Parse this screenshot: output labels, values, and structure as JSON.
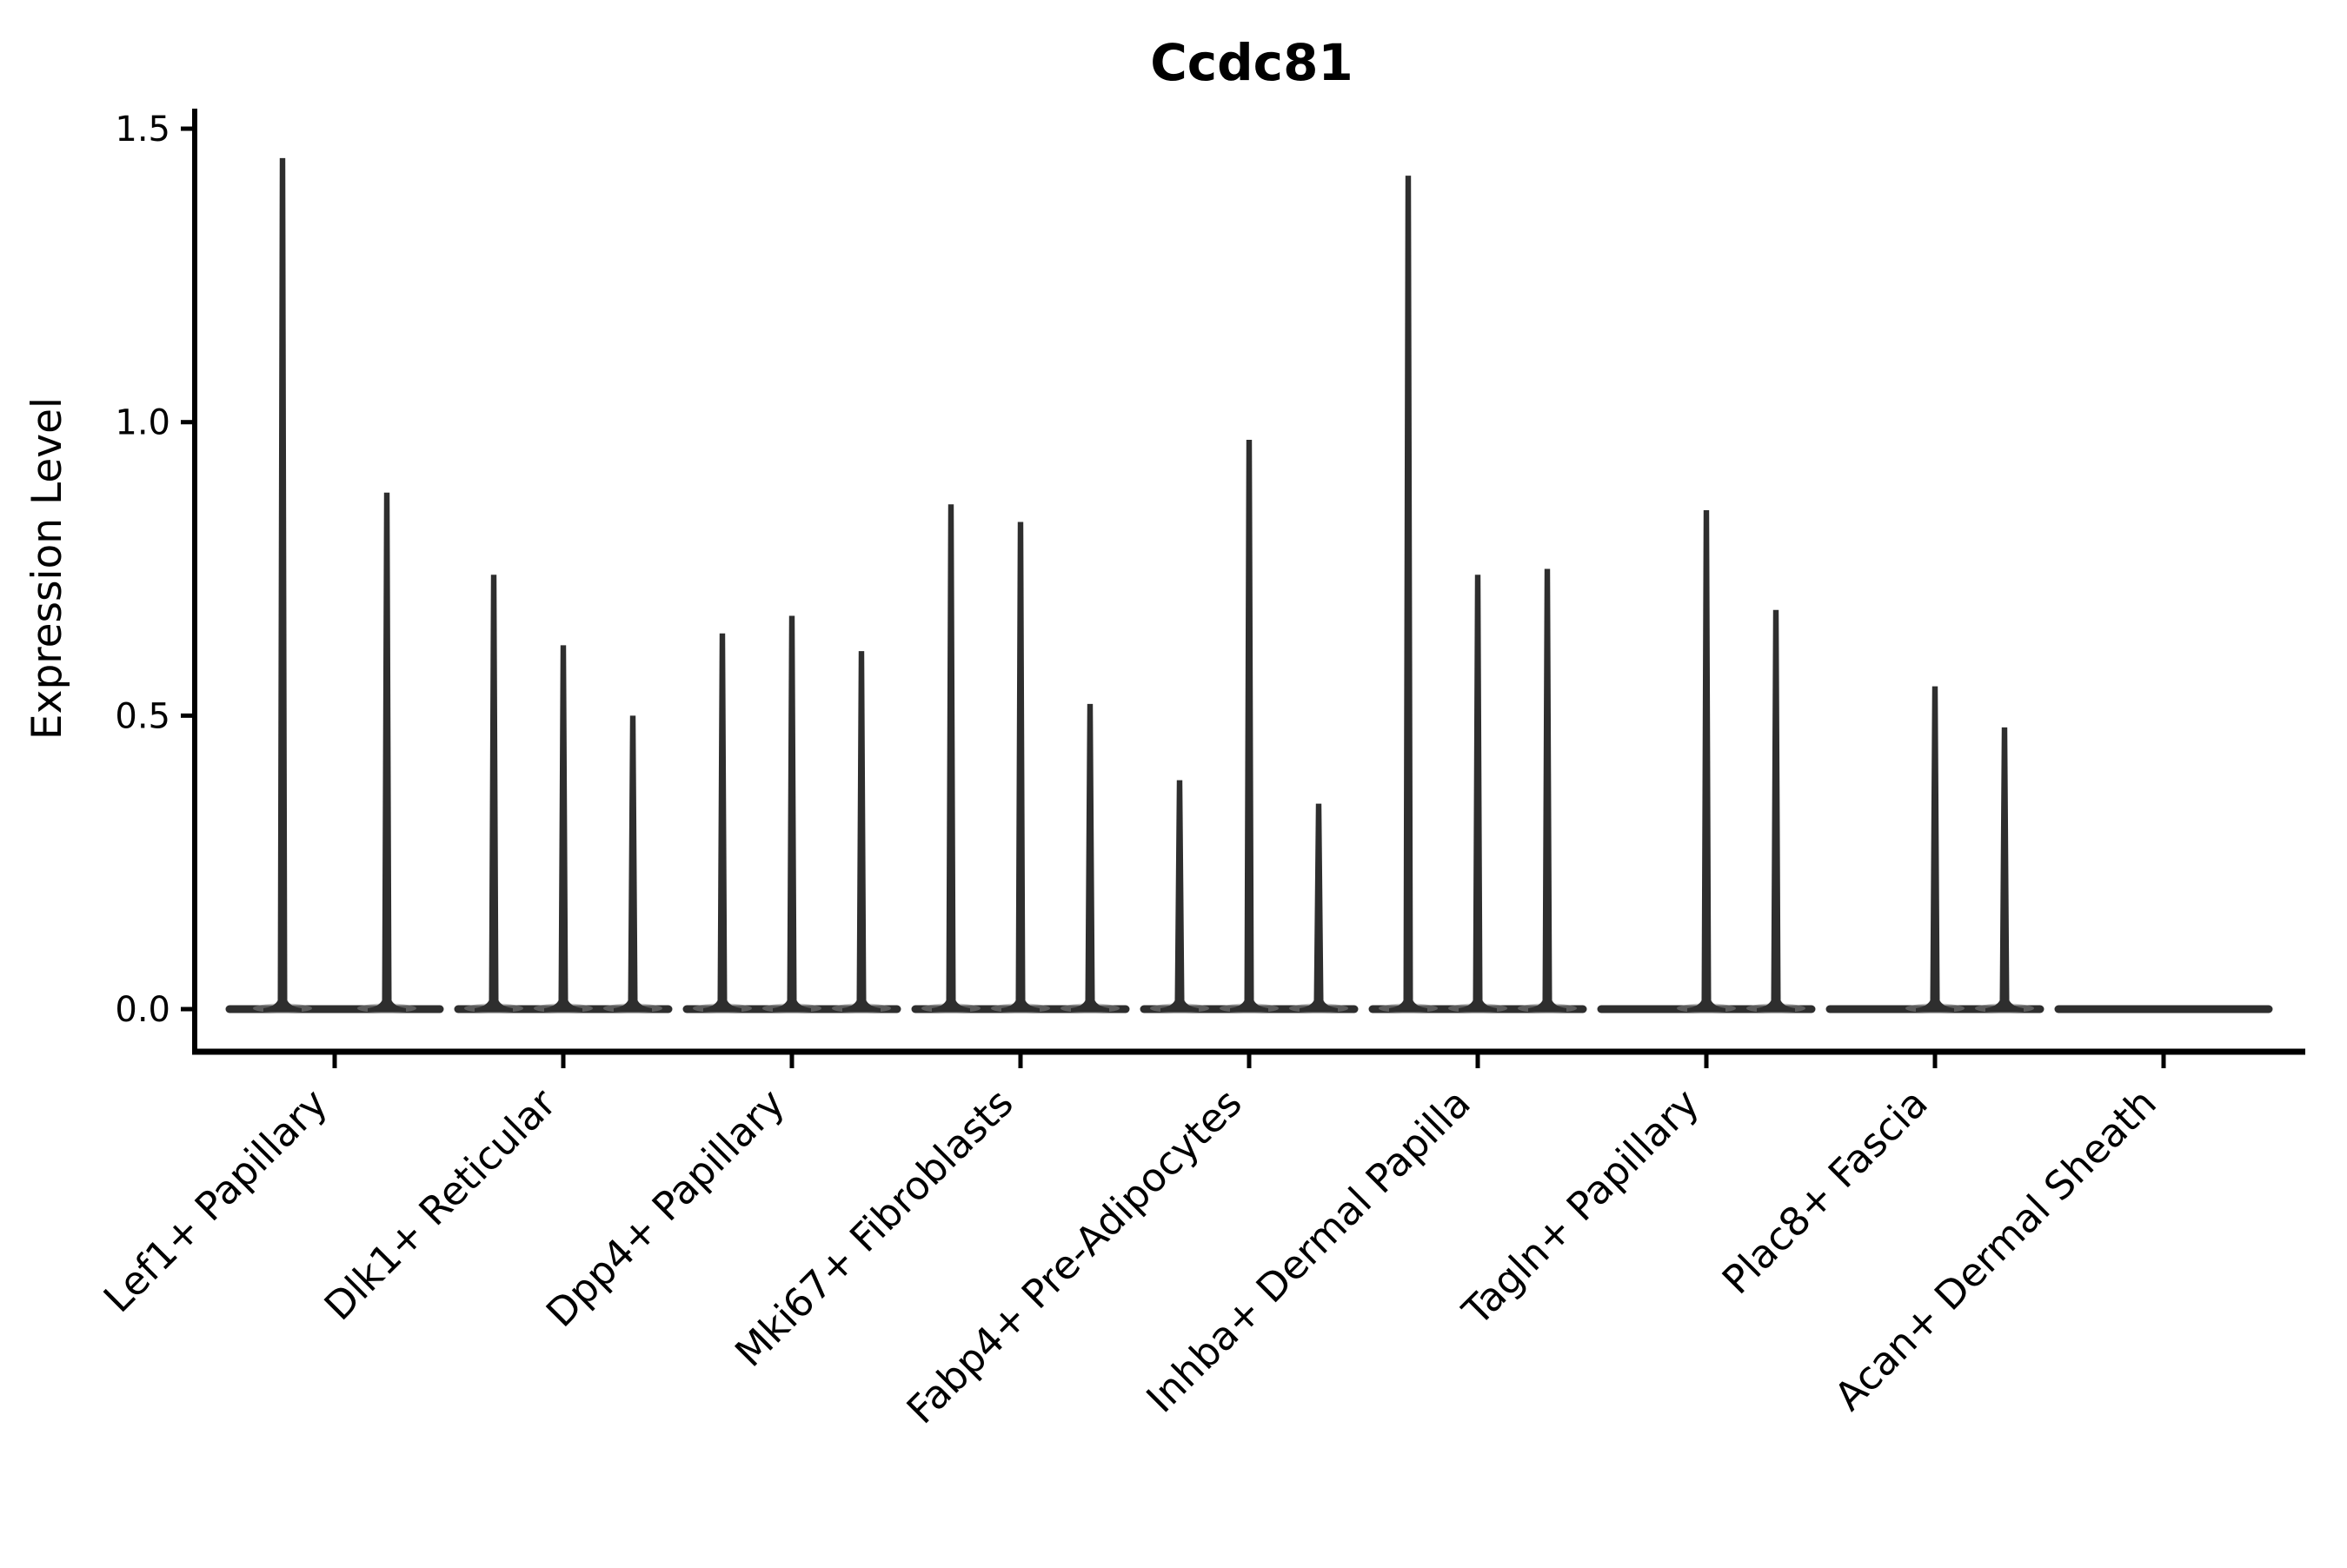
{
  "chart_data": {
    "type": "violin",
    "title": "Ccdc81",
    "ylabel": "Expression Level",
    "xlabel": "",
    "y_ticks": [
      0.0,
      0.5,
      1.0,
      1.5
    ],
    "y_tick_labels": [
      "0.0",
      "0.5",
      "1.0",
      "1.5"
    ],
    "ylim": [
      -0.08,
      1.53
    ],
    "grid": false,
    "legend": "none",
    "x_tick_rotation_deg": 45,
    "categories": [
      "Lef1+ Papillary",
      "Dlk1+ Reticular",
      "Dpp4+ Papillary",
      "Mki67+ Fibroblasts",
      "Fabp4+ Pre-Adipocytes",
      "Inhba+ Dermal Papilla",
      "Tagln+ Papillary",
      "Plac8+ Fascia",
      "Acan+ Dermal Sheath"
    ],
    "series_note": "Each category shows thin violins rising from a flat zero-expression baseline; 0 means a flat violin (all cells at zero expression, baseline only).",
    "violin_peaks": [
      [
        1.45,
        0.88
      ],
      [
        0.74,
        0.62,
        0.5
      ],
      [
        0.64,
        0.67,
        0.61
      ],
      [
        0.86,
        0.83,
        0.52
      ],
      [
        0.39,
        0.97,
        0.35
      ],
      [
        1.42,
        0.74,
        0.75
      ],
      [
        0,
        0.85,
        0.68
      ],
      [
        0,
        0.55,
        0.48
      ],
      [
        0,
        0,
        0
      ]
    ],
    "colors": {
      "ink": "#000000",
      "violin": "#2e2e2e",
      "violin_shadow": "#8a8a8a",
      "background": "#ffffff"
    }
  }
}
